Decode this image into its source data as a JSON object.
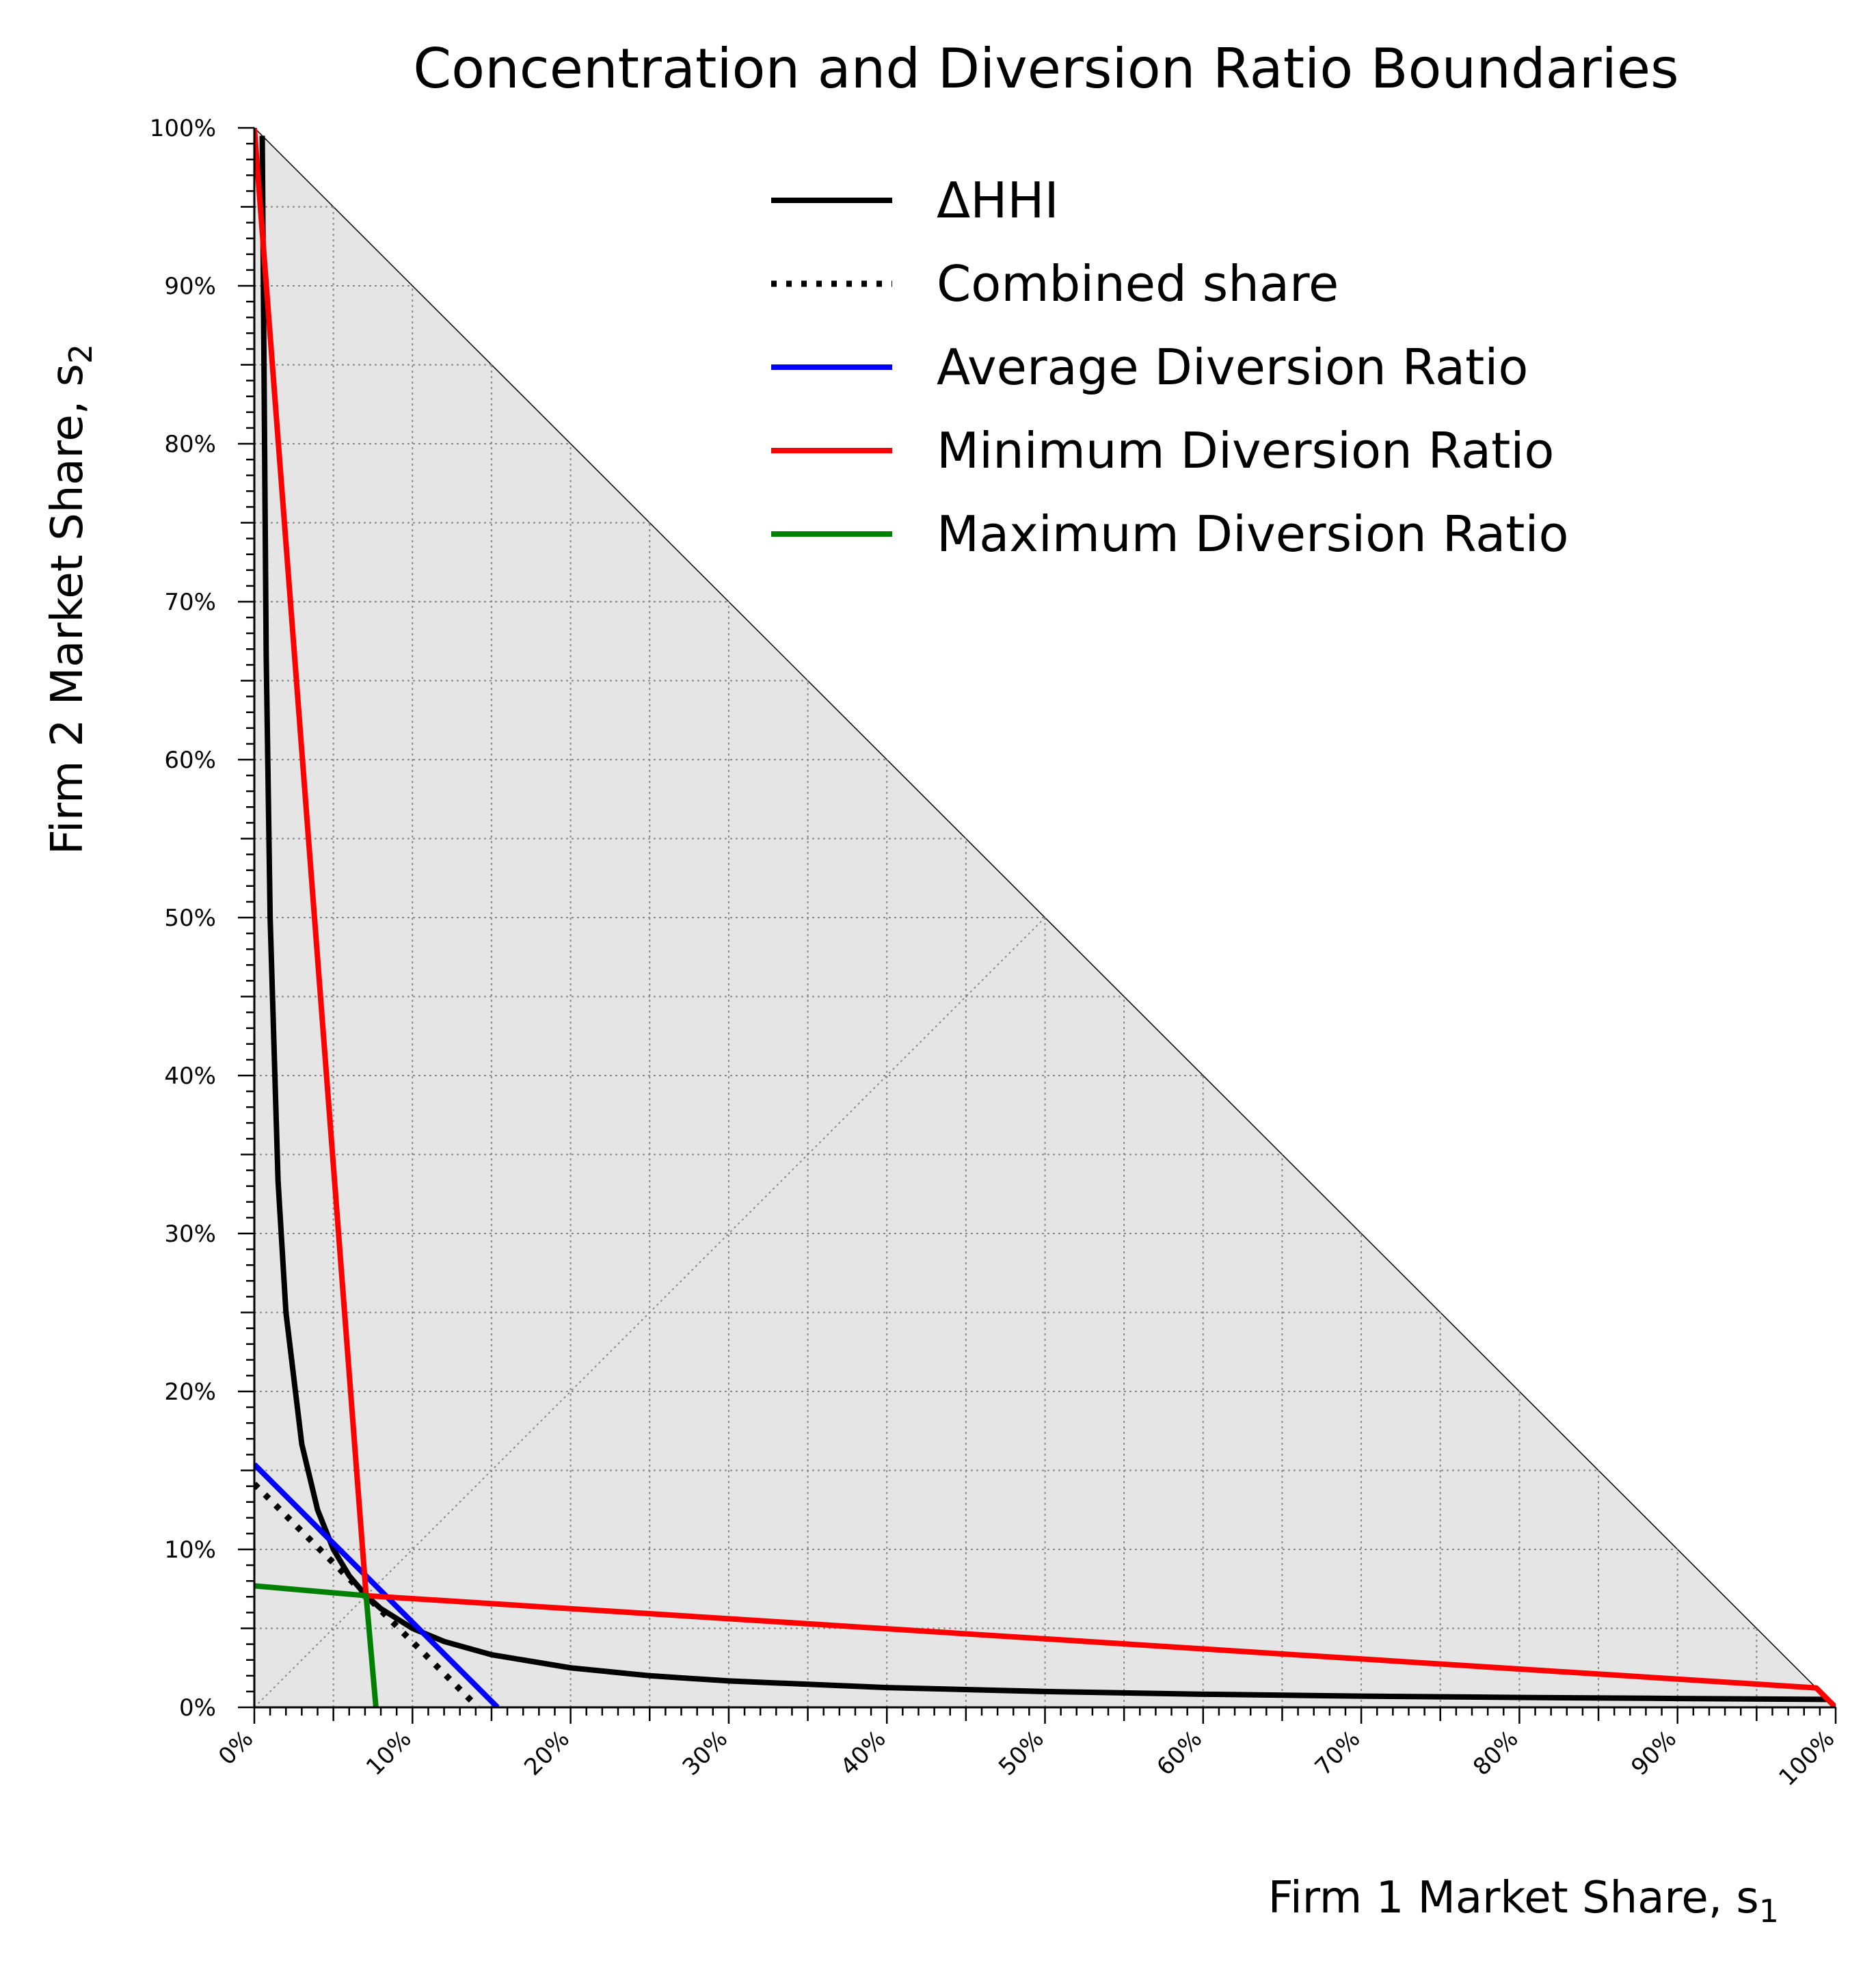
{
  "chart_data": {
    "type": "line",
    "title": "Concentration and Diversion Ratio Boundaries",
    "xlabel": "Firm 1 Market Share, s",
    "xlabel_sub": "1",
    "ylabel": "Firm 2 Market Share, s",
    "ylabel_sub": "2",
    "xlim": [
      0,
      1
    ],
    "ylim": [
      0,
      1
    ],
    "x_ticks": [
      "0%",
      "10%",
      "20%",
      "30%",
      "40%",
      "50%",
      "60%",
      "70%",
      "80%",
      "90%",
      "100%"
    ],
    "y_ticks": [
      "0%",
      "10%",
      "20%",
      "30%",
      "40%",
      "50%",
      "60%",
      "70%",
      "80%",
      "90%",
      "100%"
    ],
    "grid": true,
    "feasible_region": "s1 + s2 <= 1 (shaded gray)",
    "legend_position": "upper-right",
    "series": [
      {
        "name": "ΔHHI",
        "color": "#000000",
        "style": "solid",
        "equation": "2*s1*s2 = 0.01",
        "x": [
          0.005,
          0.0075,
          0.01,
          0.015,
          0.02,
          0.03,
          0.04,
          0.05,
          0.06,
          0.0707,
          0.08,
          0.1,
          0.12,
          0.15,
          0.2,
          0.25,
          0.3,
          0.4,
          0.5,
          0.6,
          0.7,
          0.8,
          0.9,
          0.995
        ],
        "y": [
          0.995,
          0.6667,
          0.5,
          0.3333,
          0.25,
          0.1667,
          0.125,
          0.1,
          0.0833,
          0.0707,
          0.0625,
          0.05,
          0.0417,
          0.0333,
          0.025,
          0.02,
          0.0167,
          0.0125,
          0.01,
          0.0083,
          0.0071,
          0.00625,
          0.0056,
          0.005
        ]
      },
      {
        "name": "Combined share",
        "color": "#000000",
        "style": "dotted",
        "x": [
          0.0,
          0.1414
        ],
        "y": [
          0.1414,
          0.0
        ]
      },
      {
        "name": "Average Diversion Ratio",
        "color": "#0000ff",
        "style": "solid",
        "x": [
          0.0,
          0.1538
        ],
        "y": [
          0.1538,
          0.0
        ]
      },
      {
        "name": "Minimum Diversion Ratio",
        "color": "#ff0000",
        "style": "solid",
        "x": [
          0.0,
          0.0707,
          0.9877,
          1.0
        ],
        "y": [
          1.0,
          0.0707,
          0.0123,
          0.0
        ]
      },
      {
        "name": "Maximum Diversion Ratio",
        "color": "#008000",
        "style": "solid",
        "x": [
          0.0,
          0.0707,
          0.0769
        ],
        "y": [
          0.0769,
          0.0707,
          0.0
        ]
      }
    ]
  }
}
